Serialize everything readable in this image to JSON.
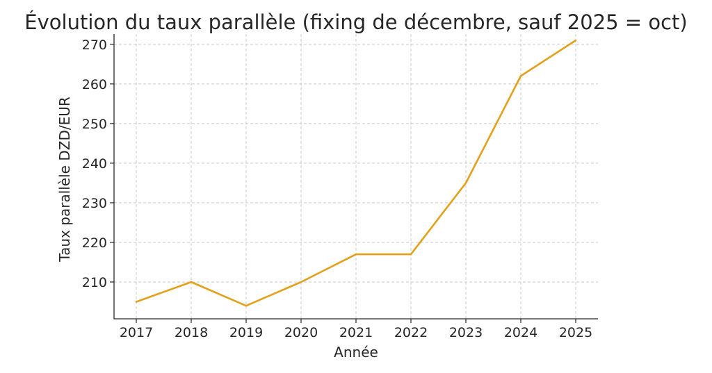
{
  "chart_data": {
    "type": "line",
    "title": "Évolution du taux parallèle (fixing de décembre, sauf 2025 = oct)",
    "xlabel": "Année",
    "ylabel": "Taux parallèle DZD/EUR",
    "x": [
      "2017",
      "2018",
      "2019",
      "2020",
      "2021",
      "2022",
      "2023",
      "2024",
      "2025"
    ],
    "series": [
      {
        "values": [
          205,
          210,
          204,
          210,
          217,
          217,
          235,
          262,
          271
        ],
        "color": "#e3a01a"
      }
    ],
    "yticks": [
      210,
      220,
      230,
      240,
      250,
      260,
      270
    ],
    "ylim": [
      200.7,
      272.6
    ],
    "grid": true,
    "legend": false
  }
}
